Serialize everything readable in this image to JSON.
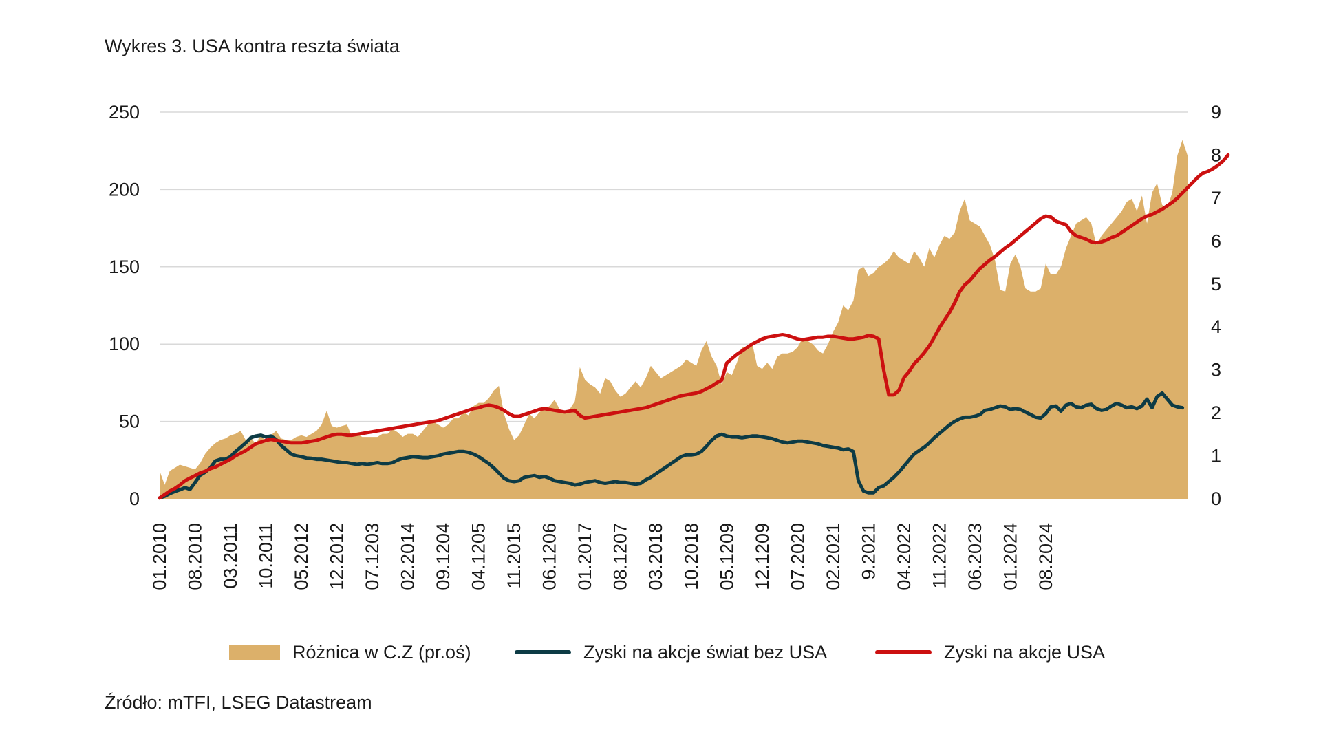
{
  "title": "Wykres 3. USA kontra reszta świata",
  "source": "Źródło: mTFI, LSEG Datastream",
  "colors": {
    "area": "#dcb06a",
    "world": "#0d3b45",
    "usa": "#cc1010",
    "grid": "#d9d9d9"
  },
  "legend": [
    {
      "label": "Różnica w C.Z (pr.oś)",
      "kind": "area"
    },
    {
      "label": "Zyski na akcje świat bez USA",
      "kind": "line-world"
    },
    {
      "label": "Zyski na akcje USA",
      "kind": "line-usa"
    }
  ],
  "chart_data": {
    "type": "area+line",
    "title": "Wykres 3. USA kontra reszta świata",
    "x_ticks": [
      "01.2010",
      "08.2010",
      "03.2011",
      "10.2011",
      "05.2012",
      "12.2012",
      "07.1203",
      "02.2014",
      "09.1204",
      "04.1205",
      "11.2015",
      "06.1206",
      "01.2017",
      "08.1207",
      "03.2018",
      "10.2018",
      "05.1209",
      "12.1209",
      "07.2020",
      "02.2021",
      "9.2021",
      "04.2022",
      "11.2022",
      "06.2023",
      "01.2024",
      "08.2024"
    ],
    "x_ticks_index_step": 7,
    "y_left": {
      "ylim": [
        0,
        250
      ],
      "ticks": [
        0,
        50,
        100,
        150,
        200,
        250
      ]
    },
    "y_right": {
      "ylim": [
        0,
        9
      ],
      "ticks": [
        0,
        1,
        2,
        3,
        4,
        5,
        6,
        7,
        8,
        9
      ]
    },
    "grid": true,
    "legend_position": "bottom",
    "series": [
      {
        "name": "Różnica w C.Z (pr.oś)",
        "type": "area",
        "axis": "left",
        "values": [
          18,
          9,
          18,
          20,
          22,
          21,
          20,
          19,
          23,
          29,
          33,
          36,
          38,
          39,
          41,
          42,
          44,
          38,
          40,
          35,
          42,
          36,
          41,
          44,
          39,
          38,
          38,
          40,
          41,
          40,
          42,
          44,
          48,
          57,
          47,
          46,
          47,
          48,
          40,
          42,
          40,
          40,
          40,
          40,
          42,
          42,
          45,
          43,
          40,
          42,
          42,
          40,
          44,
          48,
          50,
          48,
          46,
          48,
          52,
          52,
          56,
          54,
          60,
          62,
          62,
          65,
          70,
          73,
          55,
          45,
          38,
          41,
          48,
          55,
          52,
          56,
          58,
          60,
          64,
          58,
          56,
          58,
          63,
          85,
          77,
          74,
          72,
          68,
          78,
          76,
          70,
          66,
          68,
          72,
          76,
          72,
          78,
          86,
          82,
          78,
          80,
          82,
          84,
          86,
          90,
          88,
          86,
          96,
          102,
          92,
          86,
          74,
          82,
          80,
          88,
          98,
          98,
          101,
          86,
          84,
          88,
          84,
          92,
          94,
          94,
          95,
          98,
          104,
          102,
          100,
          96,
          94,
          100,
          108,
          114,
          125,
          122,
          128,
          148,
          150,
          144,
          146,
          150,
          152,
          155,
          160,
          156,
          154,
          152,
          160,
          156,
          150,
          162,
          156,
          164,
          170,
          168,
          172,
          186,
          194,
          180,
          178,
          176,
          170,
          164,
          154,
          135,
          134,
          152,
          158,
          150,
          136,
          134,
          134,
          136,
          152,
          145,
          145,
          150,
          162,
          170,
          178,
          180,
          182,
          178,
          164,
          170,
          174,
          178,
          182,
          186,
          192,
          194,
          186,
          196,
          178,
          198,
          204,
          190,
          188,
          198,
          222,
          232,
          222
        ]
      },
      {
        "name": "Zyski na akcje świat bez USA",
        "type": "line",
        "axis": "right",
        "values": [
          0.02,
          0.06,
          0.12,
          0.17,
          0.21,
          0.26,
          0.22,
          0.38,
          0.55,
          0.62,
          0.72,
          0.88,
          0.92,
          0.92,
          0.98,
          1.1,
          1.2,
          1.3,
          1.42,
          1.46,
          1.48,
          1.44,
          1.46,
          1.38,
          1.24,
          1.14,
          1.04,
          1.0,
          0.98,
          0.95,
          0.94,
          0.92,
          0.92,
          0.9,
          0.88,
          0.86,
          0.84,
          0.84,
          0.82,
          0.8,
          0.82,
          0.8,
          0.82,
          0.84,
          0.82,
          0.82,
          0.84,
          0.9,
          0.94,
          0.96,
          0.98,
          0.97,
          0.96,
          0.96,
          0.98,
          1.0,
          1.04,
          1.06,
          1.08,
          1.1,
          1.1,
          1.08,
          1.04,
          0.98,
          0.9,
          0.82,
          0.72,
          0.6,
          0.48,
          0.42,
          0.4,
          0.42,
          0.5,
          0.52,
          0.54,
          0.5,
          0.52,
          0.48,
          0.42,
          0.4,
          0.38,
          0.36,
          0.32,
          0.34,
          0.38,
          0.4,
          0.42,
          0.38,
          0.36,
          0.38,
          0.4,
          0.38,
          0.38,
          0.36,
          0.34,
          0.36,
          0.44,
          0.5,
          0.58,
          0.66,
          0.74,
          0.82,
          0.9,
          0.98,
          1.02,
          1.02,
          1.04,
          1.1,
          1.22,
          1.36,
          1.46,
          1.5,
          1.46,
          1.44,
          1.44,
          1.42,
          1.44,
          1.46,
          1.46,
          1.44,
          1.42,
          1.4,
          1.36,
          1.32,
          1.3,
          1.32,
          1.34,
          1.34,
          1.32,
          1.3,
          1.28,
          1.24,
          1.22,
          1.2,
          1.18,
          1.14,
          1.16,
          1.1,
          0.42,
          0.18,
          0.14,
          0.14,
          0.26,
          0.3,
          0.4,
          0.5,
          0.62,
          0.76,
          0.9,
          1.04,
          1.12,
          1.2,
          1.3,
          1.42,
          1.52,
          1.62,
          1.72,
          1.8,
          1.86,
          1.9,
          1.9,
          1.92,
          1.96,
          2.06,
          2.08,
          2.12,
          2.16,
          2.14,
          2.08,
          2.1,
          2.08,
          2.02,
          1.96,
          1.9,
          1.88,
          1.98,
          2.14,
          2.16,
          2.04,
          2.18,
          2.22,
          2.14,
          2.12,
          2.18,
          2.2,
          2.1,
          2.06,
          2.08,
          2.16,
          2.22,
          2.18,
          2.12,
          2.14,
          2.1,
          2.16,
          2.32,
          2.12,
          2.38,
          2.46,
          2.32,
          2.18,
          2.14,
          2.12
        ]
      },
      {
        "name": "Zyski na akcje USA",
        "type": "line",
        "axis": "right",
        "values": [
          0.02,
          0.1,
          0.18,
          0.24,
          0.32,
          0.42,
          0.48,
          0.54,
          0.6,
          0.64,
          0.7,
          0.74,
          0.8,
          0.86,
          0.92,
          1.0,
          1.06,
          1.12,
          1.2,
          1.28,
          1.32,
          1.36,
          1.38,
          1.36,
          1.34,
          1.32,
          1.3,
          1.3,
          1.3,
          1.32,
          1.34,
          1.36,
          1.4,
          1.44,
          1.48,
          1.5,
          1.5,
          1.48,
          1.48,
          1.5,
          1.52,
          1.54,
          1.56,
          1.58,
          1.6,
          1.62,
          1.64,
          1.66,
          1.68,
          1.7,
          1.72,
          1.74,
          1.76,
          1.78,
          1.8,
          1.82,
          1.86,
          1.9,
          1.94,
          1.98,
          2.02,
          2.06,
          2.1,
          2.12,
          2.16,
          2.18,
          2.16,
          2.12,
          2.06,
          1.98,
          1.92,
          1.92,
          1.96,
          2.0,
          2.04,
          2.08,
          2.1,
          2.08,
          2.06,
          2.04,
          2.02,
          2.04,
          2.06,
          1.94,
          1.88,
          1.9,
          1.92,
          1.94,
          1.96,
          1.98,
          2.0,
          2.02,
          2.04,
          2.06,
          2.08,
          2.1,
          2.12,
          2.16,
          2.2,
          2.24,
          2.28,
          2.32,
          2.36,
          2.4,
          2.42,
          2.44,
          2.46,
          2.5,
          2.56,
          2.62,
          2.7,
          2.76,
          3.16,
          3.26,
          3.36,
          3.44,
          3.52,
          3.6,
          3.66,
          3.72,
          3.76,
          3.78,
          3.8,
          3.82,
          3.8,
          3.76,
          3.72,
          3.7,
          3.72,
          3.74,
          3.76,
          3.76,
          3.78,
          3.78,
          3.76,
          3.74,
          3.72,
          3.72,
          3.74,
          3.76,
          3.8,
          3.78,
          3.72,
          3.0,
          2.42,
          2.42,
          2.52,
          2.82,
          2.96,
          3.14,
          3.26,
          3.4,
          3.56,
          3.76,
          3.98,
          4.16,
          4.34,
          4.56,
          4.82,
          4.98,
          5.08,
          5.22,
          5.36,
          5.46,
          5.56,
          5.64,
          5.74,
          5.84,
          5.92,
          6.02,
          6.12,
          6.22,
          6.32,
          6.42,
          6.52,
          6.58,
          6.56,
          6.46,
          6.42,
          6.38,
          6.22,
          6.12,
          6.08,
          6.04,
          5.98,
          5.96,
          5.98,
          6.02,
          6.08,
          6.12,
          6.2,
          6.28,
          6.36,
          6.44,
          6.52,
          6.58,
          6.62,
          6.68,
          6.74,
          6.82,
          6.9,
          7.0,
          7.12,
          7.24,
          7.36,
          7.48,
          7.58,
          7.62,
          7.68,
          7.76,
          7.86,
          8.0
        ]
      }
    ]
  }
}
